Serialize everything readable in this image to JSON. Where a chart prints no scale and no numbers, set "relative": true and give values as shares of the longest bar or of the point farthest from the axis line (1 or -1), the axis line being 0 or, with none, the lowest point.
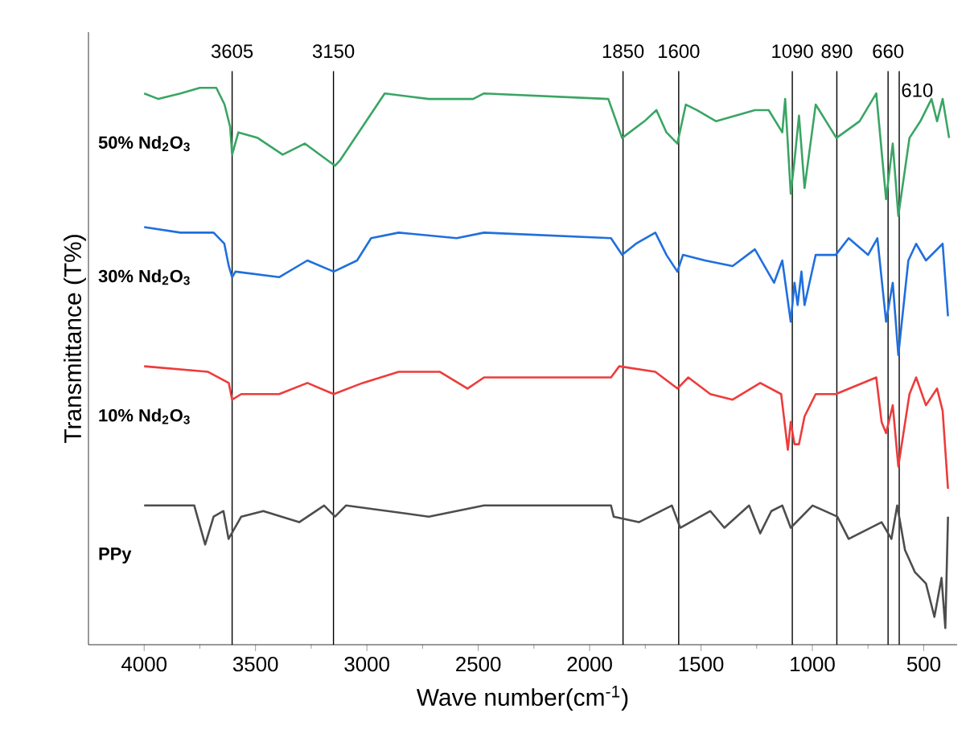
{
  "chart_data": {
    "type": "line",
    "xlabel": "Wave number(cm$^{-1}$)",
    "ylabel": "Transmittance (T%)",
    "relative": true,
    "xlim": [
      4250,
      350
    ],
    "xticks": [
      4000,
      3500,
      3000,
      2500,
      2000,
      1500,
      1000,
      500
    ],
    "line_style": "solid",
    "marker": "none",
    "series": [
      {
        "name": "50% Nd$_{2}$O$_{3}$",
        "color": "#3aa564",
        "x": [
          4000,
          3936,
          3837,
          3750,
          3676,
          3639,
          3614,
          3605,
          3577,
          3490,
          3378,
          3279,
          3143,
          3120,
          2920,
          2722,
          2523,
          2474,
          1916,
          1854,
          1754,
          1700,
          1655,
          1606,
          1568,
          1519,
          1432,
          1258,
          1196,
          1135,
          1122,
          1097,
          1080,
          1060,
          1035,
          985,
          892,
          788,
          713,
          669,
          639,
          614,
          564,
          515,
          465,
          440,
          415,
          386
        ],
        "values": [
          0.99,
          0.98,
          0.99,
          1.0,
          1.0,
          0.97,
          0.93,
          0.88,
          0.92,
          0.91,
          0.88,
          0.9,
          0.86,
          0.87,
          0.99,
          0.98,
          0.98,
          0.99,
          0.98,
          0.91,
          0.94,
          0.96,
          0.92,
          0.9,
          0.97,
          0.96,
          0.94,
          0.96,
          0.96,
          0.92,
          0.98,
          0.81,
          0.87,
          0.95,
          0.82,
          0.97,
          0.91,
          0.94,
          0.99,
          0.8,
          0.9,
          0.77,
          0.91,
          0.94,
          0.98,
          0.94,
          0.98,
          0.91
        ]
      },
      {
        "name": "30% Nd$_{2}$O$_{3}$",
        "color": "#1f6fde",
        "x": [
          4000,
          3837,
          3688,
          3640,
          3620,
          3605,
          3590,
          3394,
          3267,
          3149,
          3044,
          2981,
          2857,
          2597,
          2474,
          1904,
          1854,
          1792,
          1705,
          1655,
          1606,
          1581,
          1482,
          1358,
          1258,
          1172,
          1135,
          1097,
          1080,
          1066,
          1049,
          1035,
          985,
          895,
          837,
          750,
          708,
          669,
          639,
          614,
          569,
          534,
          490,
          415,
          391
        ],
        "values": [
          0.75,
          0.74,
          0.74,
          0.72,
          0.68,
          0.66,
          0.67,
          0.66,
          0.69,
          0.67,
          0.69,
          0.73,
          0.74,
          0.73,
          0.74,
          0.73,
          0.7,
          0.72,
          0.74,
          0.7,
          0.67,
          0.7,
          0.69,
          0.68,
          0.71,
          0.65,
          0.69,
          0.58,
          0.65,
          0.61,
          0.67,
          0.61,
          0.7,
          0.7,
          0.73,
          0.7,
          0.73,
          0.58,
          0.65,
          0.52,
          0.69,
          0.72,
          0.69,
          0.72,
          0.59
        ]
      },
      {
        "name": "10% Nd$_{2}$O$_{3}$",
        "color": "#ee3b3b",
        "x": [
          4000,
          3713,
          3620,
          3605,
          3564,
          3394,
          3267,
          3149,
          3019,
          2857,
          2672,
          2548,
          2474,
          2226,
          1904,
          1867,
          1705,
          1606,
          1557,
          1458,
          1358,
          1234,
          1140,
          1110,
          1097,
          1080,
          1060,
          1035,
          985,
          895,
          713,
          689,
          669,
          639,
          614,
          564,
          534,
          490,
          440,
          415,
          391
        ],
        "values": [
          0.5,
          0.49,
          0.47,
          0.44,
          0.45,
          0.45,
          0.47,
          0.45,
          0.47,
          0.49,
          0.49,
          0.46,
          0.48,
          0.48,
          0.48,
          0.5,
          0.49,
          0.46,
          0.48,
          0.45,
          0.44,
          0.47,
          0.45,
          0.35,
          0.4,
          0.36,
          0.36,
          0.41,
          0.45,
          0.45,
          0.48,
          0.4,
          0.38,
          0.43,
          0.32,
          0.45,
          0.48,
          0.43,
          0.46,
          0.42,
          0.28
        ]
      },
      {
        "name": "PPy",
        "color": "#4d4d4d",
        "x": [
          4000,
          3775,
          3726,
          3688,
          3644,
          3621,
          3564,
          3465,
          3304,
          3192,
          3143,
          3094,
          2722,
          2474,
          1904,
          1892,
          1779,
          1631,
          1593,
          1458,
          1395,
          1284,
          1234,
          1184,
          1135,
          1097,
          999,
          888,
          837,
          689,
          645,
          619,
          584,
          539,
          490,
          452,
          420,
          403,
          391
        ],
        "values": [
          0.25,
          0.25,
          0.18,
          0.23,
          0.24,
          0.19,
          0.23,
          0.24,
          0.22,
          0.25,
          0.23,
          0.25,
          0.23,
          0.25,
          0.25,
          0.23,
          0.22,
          0.25,
          0.21,
          0.24,
          0.21,
          0.25,
          0.2,
          0.24,
          0.25,
          0.21,
          0.25,
          0.23,
          0.19,
          0.22,
          0.19,
          0.25,
          0.17,
          0.13,
          0.11,
          0.05,
          0.12,
          0.03,
          0.23
        ]
      }
    ],
    "ref_lines": [
      {
        "axis": "x",
        "value": 3605,
        "label": "3605",
        "color": "#000000"
      },
      {
        "axis": "x",
        "value": 3150,
        "label": "3150",
        "color": "#000000"
      },
      {
        "axis": "x",
        "value": 1850,
        "label": "1850",
        "color": "#000000"
      },
      {
        "axis": "x",
        "value": 1600,
        "label": "1600",
        "color": "#000000"
      },
      {
        "axis": "x",
        "value": 1090,
        "label": "1090",
        "color": "#000000"
      },
      {
        "axis": "x",
        "value": 890,
        "label": "890",
        "color": "#000000"
      },
      {
        "axis": "x",
        "value": 660,
        "label": "660",
        "color": "#000000"
      },
      {
        "axis": "x",
        "value": 610,
        "label": "610",
        "color": "#000000"
      }
    ]
  }
}
